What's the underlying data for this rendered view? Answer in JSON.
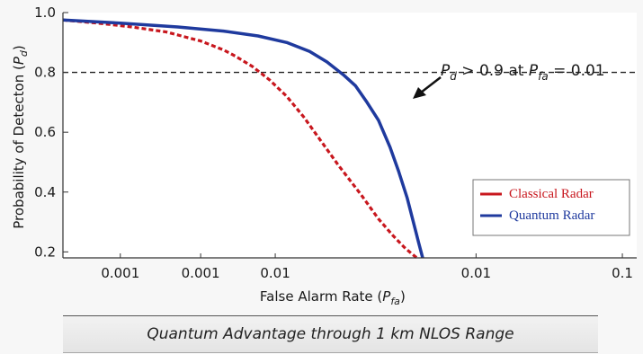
{
  "chart_data": {
    "type": "line",
    "title": "",
    "xlabel": "False Alarm Rate (P_fa)",
    "ylabel": "Probability of Detecton (P_d)",
    "x_tick_labels": [
      "0.001",
      "0.001",
      "0.01",
      "0.01",
      "0.1"
    ],
    "y_tick_labels": [
      "0.2",
      "0.4",
      "0.6",
      "0.8",
      "1.0"
    ],
    "y_ticks": [
      0.2,
      0.4,
      0.6,
      0.8,
      1.0
    ],
    "ylim": [
      0.18,
      1.0
    ],
    "grid": false,
    "legend_position": "bottom-right",
    "threshold_line": {
      "y": 0.8,
      "style": "dashed"
    },
    "annotation": {
      "text_parts": [
        "P",
        "d",
        " > 0.9 at ",
        "P",
        "fa",
        " = 0.01"
      ]
    },
    "series": [
      {
        "name": "Classical Radar",
        "color": "#c8171e",
        "style": "dotted",
        "x": [
          0.0,
          0.06,
          0.12,
          0.18,
          0.24,
          0.28,
          0.3,
          0.33,
          0.36,
          0.39,
          0.42,
          0.45,
          0.48,
          0.52,
          0.55,
          0.575,
          0.595,
          0.607,
          0.617
        ],
        "y": [
          0.975,
          0.965,
          0.952,
          0.935,
          0.905,
          0.875,
          0.855,
          0.82,
          0.775,
          0.72,
          0.65,
          0.57,
          0.49,
          0.39,
          0.31,
          0.255,
          0.215,
          0.195,
          0.18
        ]
      },
      {
        "name": "Quantum Radar",
        "color": "#1f3a9e",
        "style": "solid",
        "x": [
          0.0,
          0.1,
          0.2,
          0.28,
          0.34,
          0.39,
          0.43,
          0.46,
          0.49,
          0.51,
          0.53,
          0.55,
          0.57,
          0.585,
          0.6,
          0.612,
          0.62,
          0.627
        ],
        "y": [
          0.975,
          0.965,
          0.952,
          0.938,
          0.922,
          0.9,
          0.87,
          0.835,
          0.79,
          0.755,
          0.7,
          0.64,
          0.55,
          0.47,
          0.38,
          0.29,
          0.23,
          0.18
        ]
      }
    ]
  },
  "caption": "Quantum Advantage through 1 km NLOS Range"
}
